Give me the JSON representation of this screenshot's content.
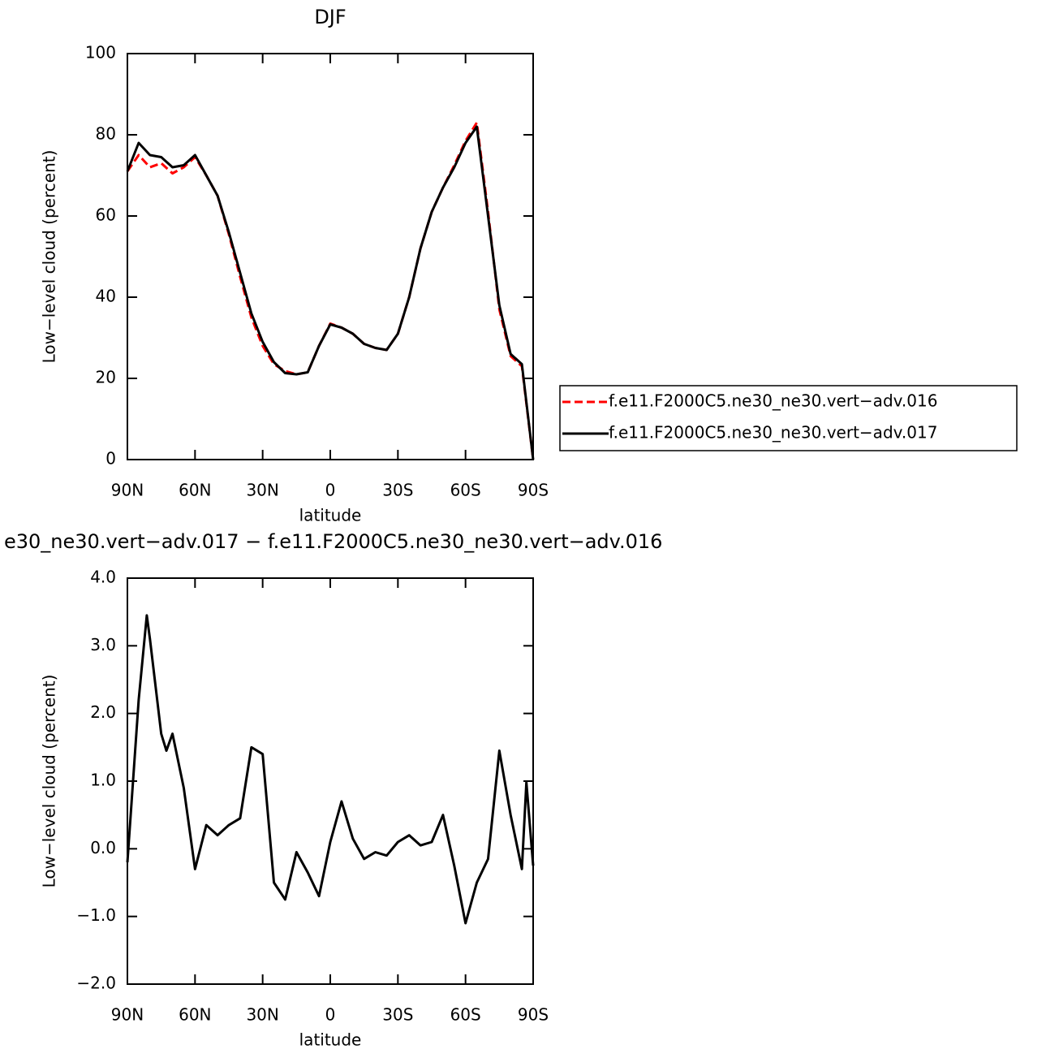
{
  "chart_data": [
    {
      "type": "line",
      "title": "DJF",
      "xlabel": "latitude",
      "ylabel": "Low−level cloud (percent)",
      "xlim": [
        90,
        -90
      ],
      "xticks": [
        {
          "value": 90,
          "label": "90N"
        },
        {
          "value": 60,
          "label": "60N"
        },
        {
          "value": 30,
          "label": "30N"
        },
        0,
        {
          "value": -30,
          "label": "30S"
        },
        {
          "value": -60,
          "label": "60S"
        },
        {
          "value": -90,
          "label": "90S"
        }
      ],
      "ylim": [
        0,
        100
      ],
      "yticks": [
        0,
        20,
        40,
        60,
        80,
        100
      ],
      "legend": "right",
      "x": [
        90,
        85,
        80,
        75,
        70,
        65,
        60,
        55,
        50,
        45,
        40,
        35,
        30,
        25,
        20,
        15,
        10,
        5,
        0,
        -5,
        -10,
        -15,
        -20,
        -25,
        -30,
        -35,
        -40,
        -45,
        -50,
        -55,
        -60,
        -65,
        -70,
        -75,
        -80,
        -85,
        -90
      ],
      "series": [
        {
          "name": "f.e11.F2000C5.ne30_ne30.vert−adv.016",
          "color": "#ff0000",
          "linestyle": "dashed",
          "values": [
            71,
            75,
            72,
            73,
            70.5,
            72,
            74.5,
            70,
            65,
            55.5,
            45,
            35,
            28,
            23.5,
            21.8,
            21,
            21.5,
            28,
            33.5,
            32.5,
            31,
            28.5,
            27.5,
            27,
            31,
            40,
            52,
            61,
            67,
            72.5,
            78.5,
            83,
            61,
            37,
            25.5,
            23,
            0
          ]
        },
        {
          "name": "f.e11.F2000C5.ne30_ne30.vert−adv.017",
          "color": "#000000",
          "linestyle": "solid",
          "values": [
            71,
            78,
            75,
            74.5,
            72,
            72.5,
            75,
            70,
            65,
            56,
            46,
            36,
            29,
            24,
            21.3,
            21,
            21.5,
            28,
            33.3,
            32.5,
            31,
            28.5,
            27.5,
            27,
            31,
            40,
            52,
            61,
            67,
            72,
            78,
            82,
            60,
            38,
            26,
            23.5,
            0
          ]
        }
      ]
    },
    {
      "type": "line",
      "title": "e30_ne30.vert−adv.017 − f.e11.F2000C5.ne30_ne30.vert−adv.016",
      "xlabel": "latitude",
      "ylabel": "Low−level cloud (percent)",
      "xlim": [
        90,
        -90
      ],
      "xticks": [
        {
          "value": 90,
          "label": "90N"
        },
        {
          "value": 60,
          "label": "60N"
        },
        {
          "value": 30,
          "label": "30N"
        },
        0,
        {
          "value": -30,
          "label": "30S"
        },
        {
          "value": -60,
          "label": "60S"
        },
        {
          "value": -90,
          "label": "90S"
        }
      ],
      "ylim": [
        -2,
        4
      ],
      "yticks": [
        {
          "value": -2,
          "label": "−2.0"
        },
        {
          "value": -1,
          "label": "−1.0"
        },
        {
          "value": 0,
          "label": "0.0"
        },
        {
          "value": 1,
          "label": "1.0"
        },
        {
          "value": 2,
          "label": "2.0"
        },
        {
          "value": 3,
          "label": "3.0"
        },
        {
          "value": 4,
          "label": "4.0"
        }
      ],
      "x": [
        90,
        85,
        81.4,
        80,
        75,
        72.7,
        70,
        65,
        60,
        55,
        50,
        45,
        40,
        35,
        30,
        25,
        20,
        15,
        10,
        5,
        0,
        -5,
        -10,
        -15,
        -20,
        -25,
        -30,
        -35,
        -40,
        -45,
        -50,
        -55,
        -60,
        -65,
        -70,
        -75,
        -80,
        -85,
        -87,
        -90
      ],
      "series": [
        {
          "color": "#000000",
          "linestyle": "solid",
          "values": [
            -0.2,
            2.2,
            3.45,
            3.1,
            1.7,
            1.45,
            1.7,
            0.9,
            -0.3,
            0.35,
            0.2,
            0.35,
            0.45,
            1.5,
            1.4,
            -0.5,
            -0.75,
            -0.05,
            -0.35,
            -0.7,
            0.1,
            0.7,
            0.15,
            -0.15,
            -0.05,
            -0.1,
            0.1,
            0.2,
            0.05,
            0.1,
            0.5,
            -0.25,
            -1.1,
            -0.5,
            -0.15,
            1.45,
            0.5,
            -0.3,
            0.98,
            -0.25
          ]
        }
      ]
    }
  ]
}
